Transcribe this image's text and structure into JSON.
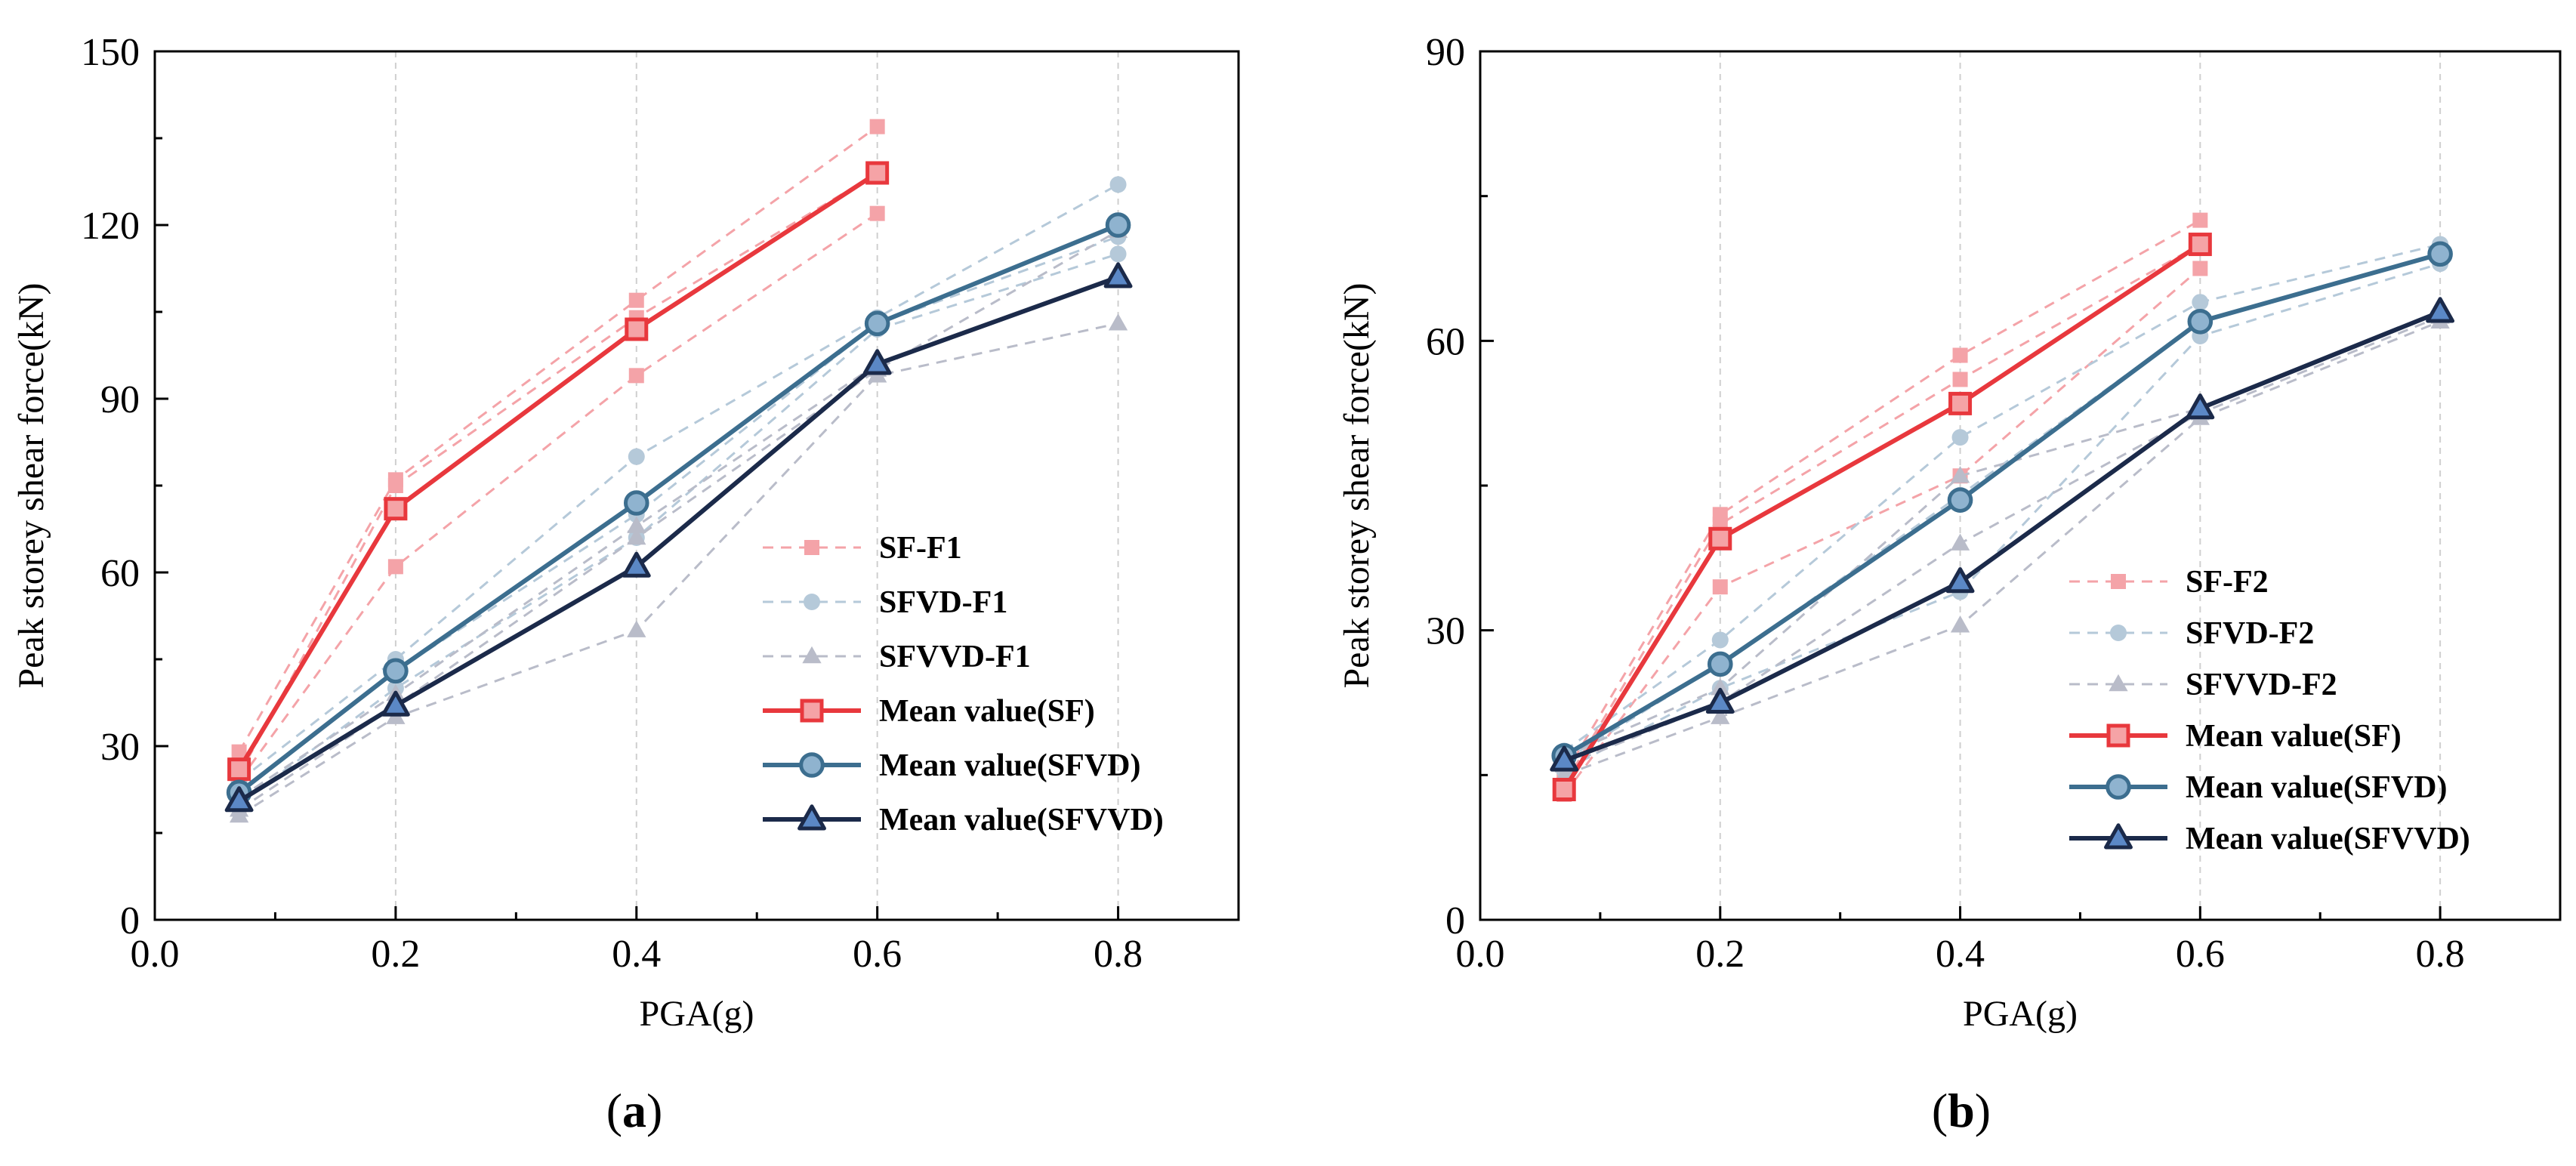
{
  "chart_data": [
    {
      "type": "line",
      "panel_label": "(a)",
      "panel_letter": "a",
      "xlabel": "PGA(g)",
      "ylabel": "Peak storey shear force(kN)",
      "xlim": [
        0.0,
        0.9
      ],
      "ylim": [
        0,
        150
      ],
      "xticks": [
        0.0,
        0.2,
        0.4,
        0.6,
        0.8
      ],
      "xtick_labels": [
        "0.0",
        "0.2",
        "0.4",
        "0.6",
        "0.8"
      ],
      "yticks": [
        0,
        30,
        60,
        90,
        120,
        150
      ],
      "ytick_labels": [
        "0",
        "30",
        "60",
        "90",
        "120",
        "150"
      ],
      "vgrid_x": [
        0.2,
        0.4,
        0.6,
        0.8
      ],
      "legend_position": "center-right",
      "series": [
        {
          "name": "SF-F1",
          "style": "faint",
          "marker": "square",
          "color": "#f4a3a8",
          "lines": [
            {
              "x": [
                0.07,
                0.2,
                0.4,
                0.6
              ],
              "y": [
                29,
                76,
                107,
                137
              ]
            },
            {
              "x": [
                0.07,
                0.2,
                0.4,
                0.6
              ],
              "y": [
                25,
                75,
                104,
                129
              ]
            },
            {
              "x": [
                0.07,
                0.2,
                0.4,
                0.6
              ],
              "y": [
                24,
                61,
                94,
                122
              ]
            }
          ]
        },
        {
          "name": "SFVD-F1",
          "style": "faint",
          "marker": "circle",
          "color": "#b5c9d9",
          "lines": [
            {
              "x": [
                0.07,
                0.2,
                0.4,
                0.6,
                0.8
              ],
              "y": [
                24,
                45,
                80,
                104,
                127
              ]
            },
            {
              "x": [
                0.07,
                0.2,
                0.4,
                0.6,
                0.8
              ],
              "y": [
                22,
                43,
                70,
                103,
                118
              ]
            },
            {
              "x": [
                0.07,
                0.2,
                0.4,
                0.6,
                0.8
              ],
              "y": [
                20,
                40,
                66,
                102,
                115
              ]
            }
          ]
        },
        {
          "name": "SFVVD-F1",
          "style": "faint",
          "marker": "triangle",
          "color": "#b9bcc9",
          "lines": [
            {
              "x": [
                0.07,
                0.2,
                0.4,
                0.6,
                0.8
              ],
              "y": [
                21,
                39,
                68,
                96,
                111
              ]
            },
            {
              "x": [
                0.07,
                0.2,
                0.4,
                0.6,
                0.8
              ],
              "y": [
                19,
                37,
                66,
                95,
                119
              ]
            },
            {
              "x": [
                0.07,
                0.2,
                0.4,
                0.6,
                0.8
              ],
              "y": [
                18,
                35,
                50,
                94,
                103
              ]
            }
          ]
        },
        {
          "name": "Mean value(SF)",
          "style": "mean",
          "marker": "square",
          "color": "#e8383d",
          "fill": "#f5a3a6",
          "x": [
            0.07,
            0.2,
            0.4,
            0.6
          ],
          "y": [
            26,
            71,
            102,
            129
          ]
        },
        {
          "name": "Mean value(SFVD)",
          "style": "mean",
          "marker": "circle",
          "color": "#3c6e8f",
          "fill": "#8fb3cf",
          "x": [
            0.07,
            0.2,
            0.4,
            0.6,
            0.8
          ],
          "y": [
            22,
            43,
            72,
            103,
            120
          ]
        },
        {
          "name": "Mean value(SFVVD)",
          "style": "mean",
          "marker": "triangle",
          "color": "#1b2a4a",
          "fill": "#5b88c6",
          "x": [
            0.07,
            0.2,
            0.4,
            0.6,
            0.8
          ],
          "y": [
            20.5,
            37,
            61,
            96,
            111
          ]
        }
      ]
    },
    {
      "type": "line",
      "panel_label": "(b)",
      "panel_letter": "b",
      "xlabel": "PGA(g)",
      "ylabel": "Peak storey shear force(kN)",
      "xlim": [
        0.0,
        0.9
      ],
      "ylim": [
        0,
        90
      ],
      "xticks": [
        0.0,
        0.2,
        0.4,
        0.6,
        0.8
      ],
      "xtick_labels": [
        "0.0",
        "0.2",
        "0.4",
        "0.6",
        "0.8"
      ],
      "yticks": [
        0,
        30,
        60,
        90
      ],
      "ytick_labels": [
        "0",
        "30",
        "60",
        "90"
      ],
      "vgrid_x": [
        0.2,
        0.4,
        0.6,
        0.8
      ],
      "legend_position": "bottom-right",
      "series": [
        {
          "name": "SF-F2",
          "style": "faint",
          "marker": "square",
          "color": "#f4a3a8",
          "lines": [
            {
              "x": [
                0.07,
                0.2,
                0.4,
                0.6
              ],
              "y": [
                15,
                42,
                58.5,
                72.5
              ]
            },
            {
              "x": [
                0.07,
                0.2,
                0.4,
                0.6
              ],
              "y": [
                14,
                41,
                56,
                70
              ]
            },
            {
              "x": [
                0.07,
                0.2,
                0.4,
                0.6
              ],
              "y": [
                13,
                34.5,
                46,
                67.5
              ]
            }
          ]
        },
        {
          "name": "SFVD-F2",
          "style": "faint",
          "marker": "circle",
          "color": "#b5c9d9",
          "lines": [
            {
              "x": [
                0.07,
                0.2,
                0.4,
                0.6,
                0.8
              ],
              "y": [
                17.5,
                29,
                50,
                64,
                70
              ]
            },
            {
              "x": [
                0.07,
                0.2,
                0.4,
                0.6,
                0.8
              ],
              "y": [
                16.5,
                26.5,
                44,
                62,
                69
              ]
            },
            {
              "x": [
                0.07,
                0.2,
                0.4,
                0.6,
                0.8
              ],
              "y": [
                15.5,
                24,
                34,
                60.5,
                68
              ]
            }
          ]
        },
        {
          "name": "SFVVD-F2",
          "style": "faint",
          "marker": "triangle",
          "color": "#b9bcc9",
          "lines": [
            {
              "x": [
                0.07,
                0.2,
                0.4,
                0.6,
                0.8
              ],
              "y": [
                17,
                24,
                46,
                53,
                63
              ]
            },
            {
              "x": [
                0.07,
                0.2,
                0.4,
                0.6,
                0.8
              ],
              "y": [
                16,
                22.5,
                39,
                52.5,
                62.5
              ]
            },
            {
              "x": [
                0.07,
                0.2,
                0.4,
                0.6,
                0.8
              ],
              "y": [
                15,
                21,
                30.5,
                52,
                62
              ]
            }
          ]
        },
        {
          "name": "Mean value(SF)",
          "style": "mean",
          "marker": "square",
          "color": "#e8383d",
          "fill": "#f5a3a6",
          "x": [
            0.07,
            0.2,
            0.4,
            0.6
          ],
          "y": [
            13.5,
            39.5,
            53.5,
            70
          ]
        },
        {
          "name": "Mean value(SFVD)",
          "style": "mean",
          "marker": "circle",
          "color": "#3c6e8f",
          "fill": "#8fb3cf",
          "x": [
            0.07,
            0.2,
            0.4,
            0.6,
            0.8
          ],
          "y": [
            17,
            26.5,
            43.5,
            62,
            69
          ]
        },
        {
          "name": "Mean value(SFVVD)",
          "style": "mean",
          "marker": "triangle",
          "color": "#1b2a4a",
          "fill": "#5b88c6",
          "x": [
            0.07,
            0.2,
            0.4,
            0.6,
            0.8
          ],
          "y": [
            16.5,
            22.5,
            35,
            53,
            63
          ]
        }
      ]
    }
  ]
}
